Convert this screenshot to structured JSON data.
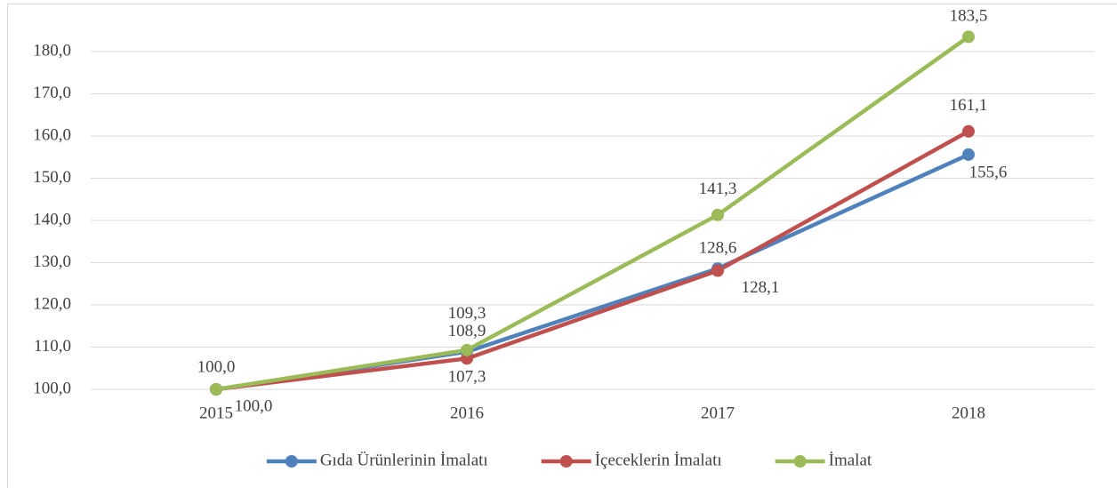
{
  "chart_data": {
    "type": "line",
    "categories": [
      "2015",
      "2016",
      "2017",
      "2018"
    ],
    "series": [
      {
        "name": "Gıda Ürünlerinin İmalatı",
        "color": "#4f81bd",
        "values": [
          100.0,
          108.9,
          128.6,
          155.6
        ],
        "value_labels": [
          "100,0",
          "108,9",
          "128,6",
          "155,6"
        ]
      },
      {
        "name": "İçeceklerin İmalatı",
        "color": "#c0504d",
        "values": [
          100.0,
          107.3,
          128.1,
          161.1
        ],
        "value_labels": [
          "100,0",
          "107,3",
          "128,1",
          "161,1"
        ]
      },
      {
        "name": "İmalat",
        "color": "#9bbb59",
        "values": [
          100.0,
          109.3,
          141.3,
          183.5
        ],
        "value_labels": [
          null,
          "109,3",
          "141,3",
          "183,5"
        ]
      }
    ],
    "ylim": [
      100,
      190
    ],
    "yticks": [
      {
        "value": 100,
        "label": "100,0"
      },
      {
        "value": 110,
        "label": "110,0"
      },
      {
        "value": 120,
        "label": "120,0"
      },
      {
        "value": 130,
        "label": "130,0"
      },
      {
        "value": 140,
        "label": "140,0"
      },
      {
        "value": 150,
        "label": "150,0"
      },
      {
        "value": 160,
        "label": "160,0"
      },
      {
        "value": 170,
        "label": "170,0"
      },
      {
        "value": 180,
        "label": "180,0"
      }
    ],
    "grid": true,
    "legend": "bottom"
  }
}
